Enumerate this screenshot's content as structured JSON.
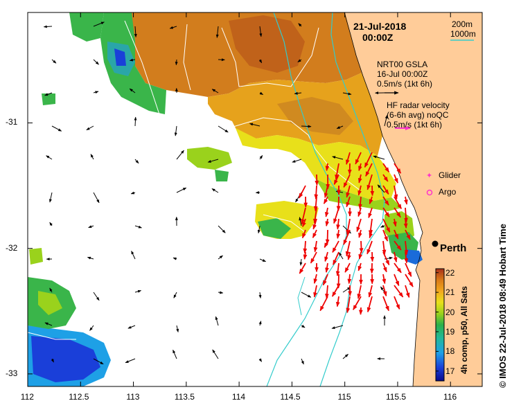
{
  "header": {
    "date": "21-Jul-2018",
    "time": "00:00Z"
  },
  "contour_legend": {
    "c200": "200m",
    "c1000": "1000m",
    "c1000_color": "#33cccc"
  },
  "gsla_legend": {
    "line1": "NRT00 GSLA",
    "line2": "16-Jul 00:00Z",
    "line3": "0.5m/s (1kt 6h)"
  },
  "hf_legend": {
    "line1": "HF radar velocity",
    "line2": "(6-6h avg) noQC",
    "line3": "0.5m/s (1kt 6h)",
    "arrow_color": "#ff33cc"
  },
  "markers": {
    "glider": "Glider",
    "argo": "Argo",
    "city": "Perth",
    "marker_color": "#ff33cc"
  },
  "colorbar": {
    "title": "4h comp, p50, All Sats",
    "ticks": [
      "17",
      "18",
      "19",
      "20",
      "21",
      "22"
    ],
    "min": 16.5,
    "max": 22.2
  },
  "axes": {
    "x_ticks": [
      "112",
      "112.5",
      "113",
      "113.5",
      "114",
      "114.5",
      "115",
      "115.5",
      "116"
    ],
    "y_ticks": [
      "-31",
      "-32",
      "-33"
    ]
  },
  "credit": "© IMOS 22-Jul-2018 08:49 Hobart Time",
  "colors": {
    "land": "#ffcc99",
    "current_arrows": "#ee0000",
    "gsla_arrows": "#000000"
  }
}
